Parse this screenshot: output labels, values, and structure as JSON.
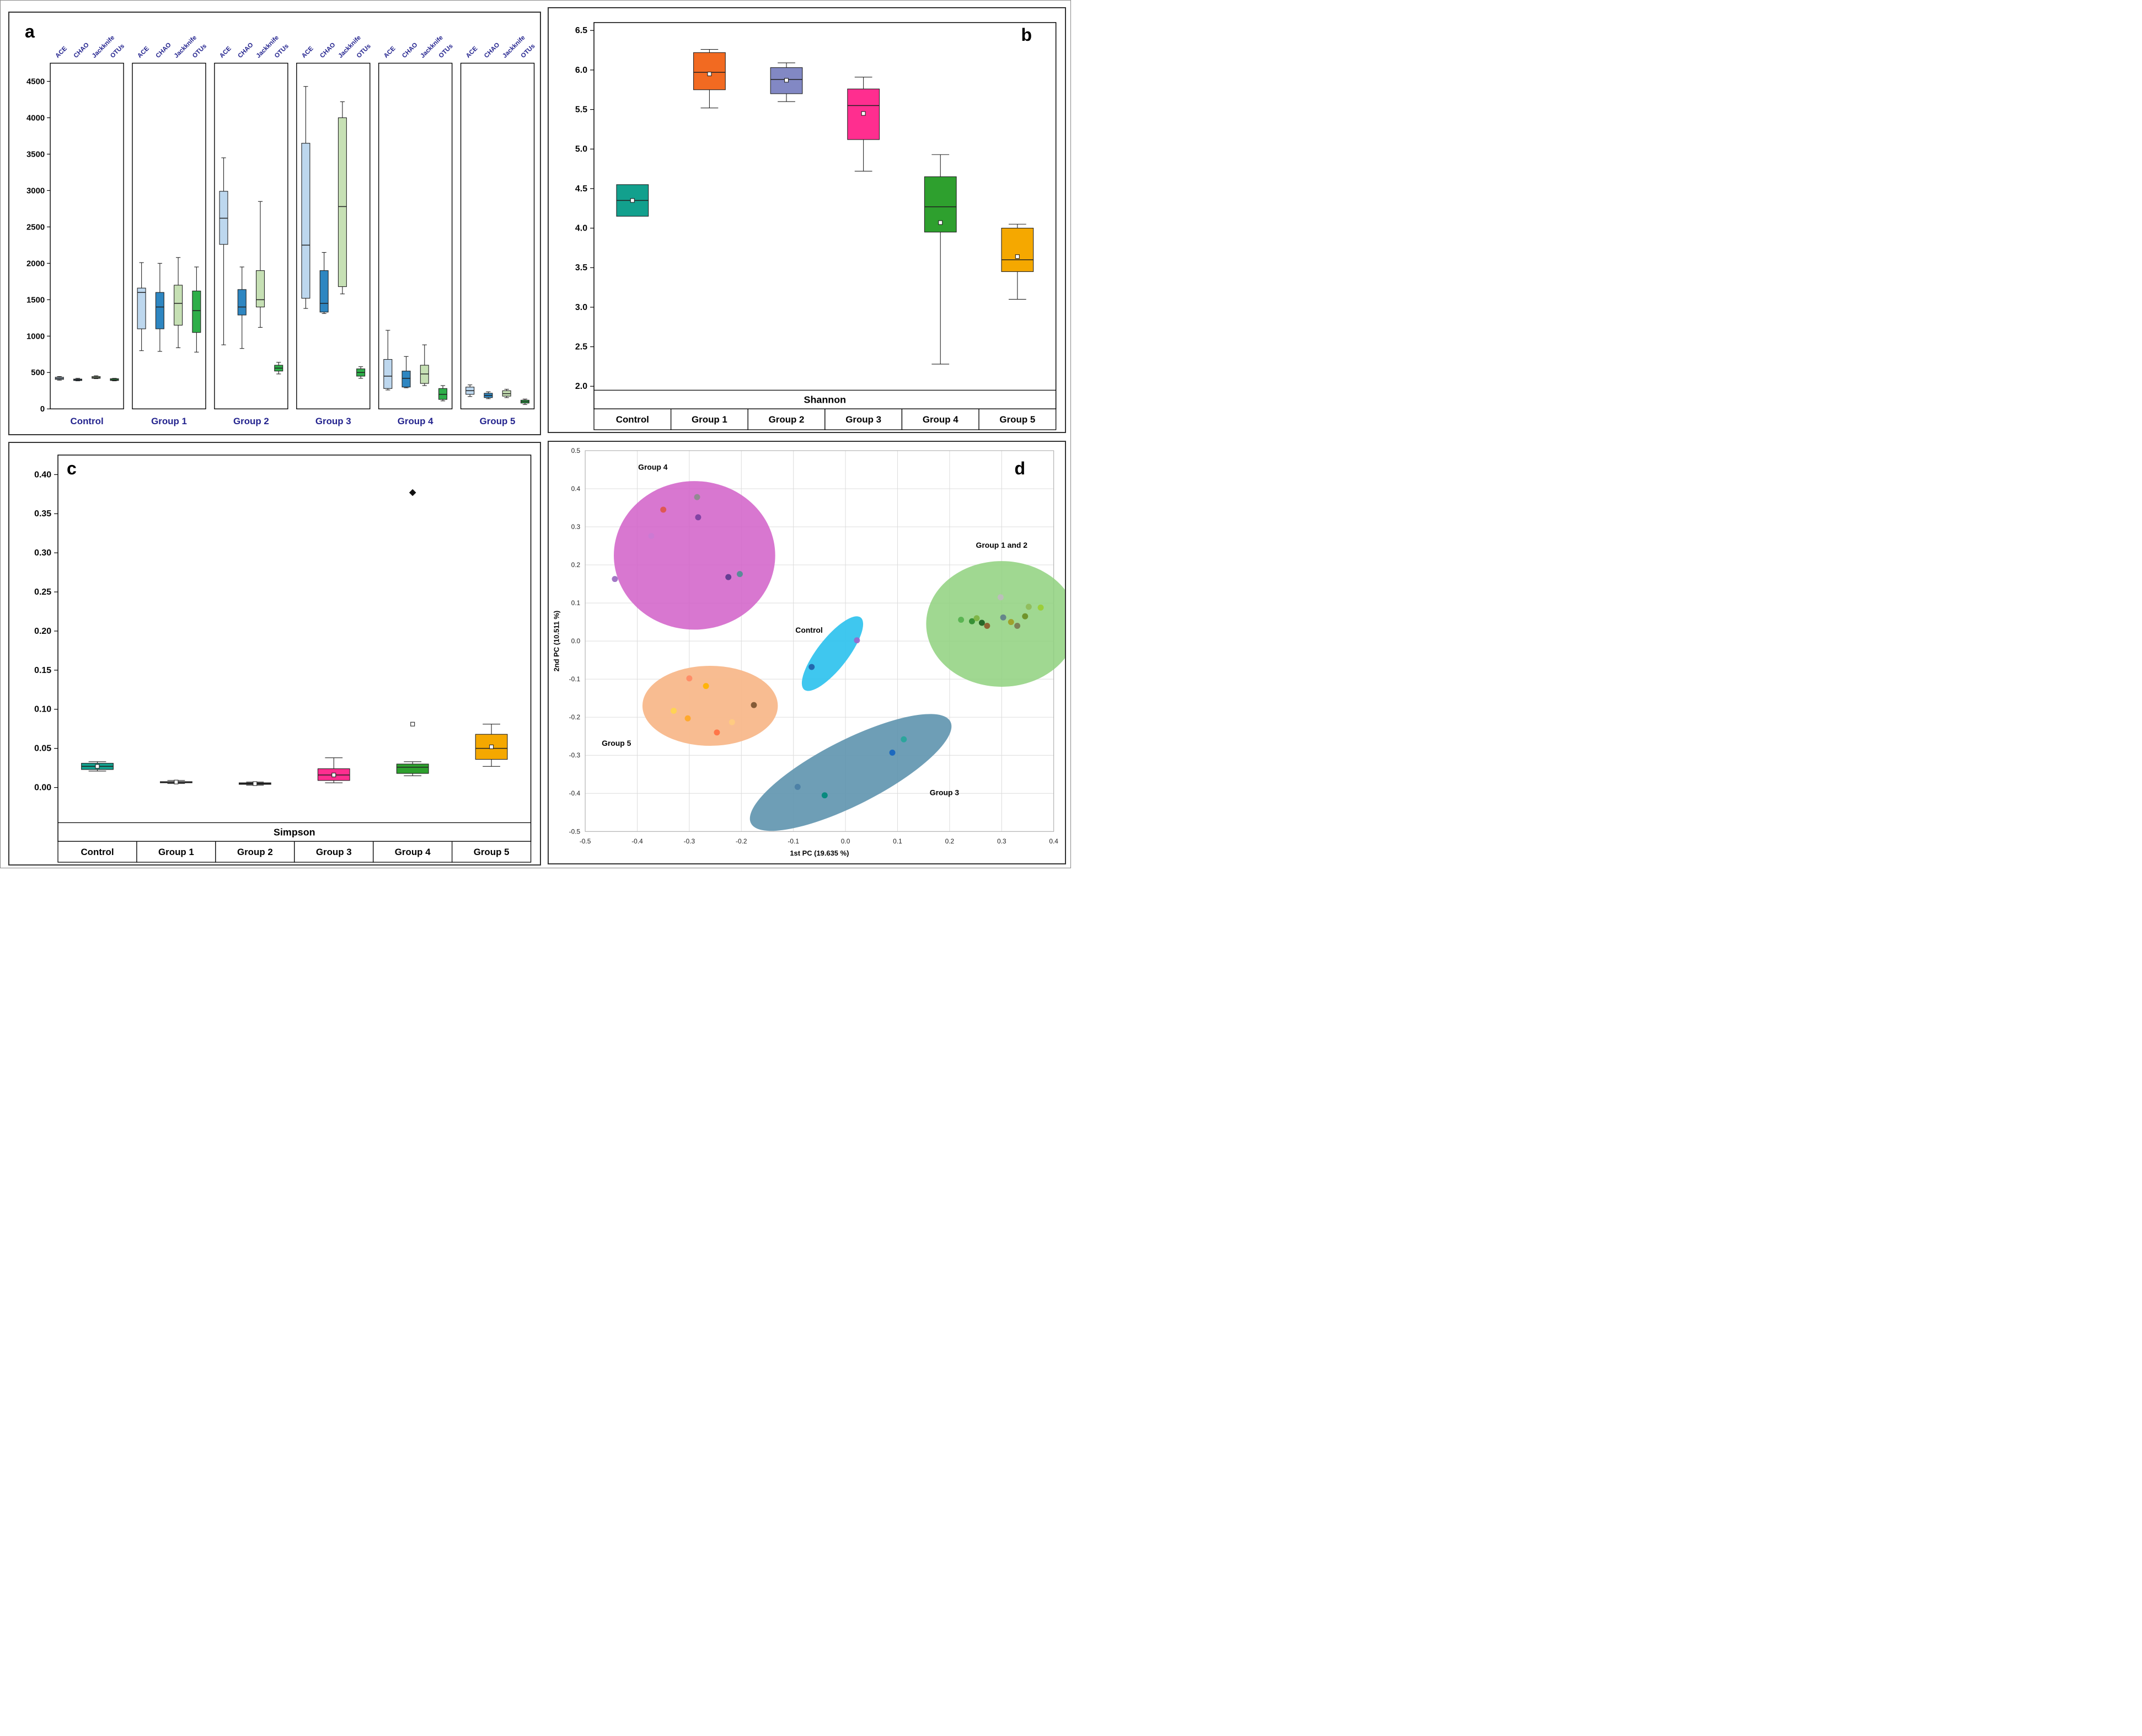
{
  "panel_letters": {
    "a": "a",
    "b": "b",
    "c": "c",
    "d": "d"
  },
  "chart_data": [
    {
      "type": "box",
      "panel": "a",
      "title": "Richness estimators (ACE, CHAO, Jackknife, OTUs) per group",
      "series": [
        "ACE",
        "CHAO",
        "Jackknife",
        "OTUs"
      ],
      "series_colors": [
        "#BDD7EE",
        "#2E86C1",
        "#C6E0B4",
        "#2EAE49"
      ],
      "groups": [
        "Control",
        "Group 1",
        "Group 2",
        "Group 3",
        "Group 4",
        "Group 5"
      ],
      "label_color": "#23238E",
      "ylim": [
        0,
        4750
      ],
      "yticks": [
        0,
        500,
        1000,
        1500,
        2000,
        2500,
        3000,
        3500,
        4000,
        4500
      ],
      "ytick_labels": [
        "0",
        "500",
        "1000",
        "1500",
        "2000",
        "2500",
        "3000",
        "3500",
        "4000",
        "4500"
      ],
      "data": [
        [
          [
            395,
            405,
            420,
            435,
            445
          ],
          [
            385,
            390,
            400,
            410,
            420
          ],
          [
            415,
            420,
            430,
            445,
            455
          ],
          [
            385,
            390,
            400,
            415,
            420
          ]
        ],
        [
          [
            800,
            1100,
            1600,
            1660,
            2010
          ],
          [
            790,
            1100,
            1400,
            1600,
            2000
          ],
          [
            840,
            1150,
            1450,
            1700,
            2080
          ],
          [
            780,
            1050,
            1350,
            1620,
            1950
          ]
        ],
        [
          [
            880,
            2260,
            2620,
            2990,
            3450
          ],
          [
            830,
            1290,
            1400,
            1640,
            1950
          ],
          [
            1120,
            1400,
            1500,
            1900,
            2850
          ],
          [
            480,
            520,
            560,
            600,
            640
          ]
        ],
        [
          [
            1380,
            1520,
            2250,
            3650,
            4430
          ],
          [
            1310,
            1330,
            1450,
            1900,
            2150
          ],
          [
            1580,
            1680,
            2780,
            4000,
            4220
          ],
          [
            420,
            450,
            500,
            550,
            580
          ]
        ],
        [
          [
            260,
            280,
            450,
            680,
            1080
          ],
          [
            290,
            300,
            420,
            520,
            720
          ],
          [
            320,
            350,
            480,
            600,
            880
          ],
          [
            110,
            130,
            200,
            280,
            320
          ]
        ],
        [
          [
            170,
            200,
            250,
            300,
            330
          ],
          [
            140,
            155,
            185,
            215,
            235
          ],
          [
            155,
            175,
            210,
            250,
            270
          ],
          [
            60,
            80,
            100,
            120,
            135
          ]
        ]
      ]
    },
    {
      "type": "box",
      "panel": "b",
      "bottom_label": "Shannon",
      "groups": [
        "Control",
        "Group 1",
        "Group 2",
        "Group 3",
        "Group 4",
        "Group 5"
      ],
      "colors": [
        "#12A08D",
        "#F26A21",
        "#8288C4",
        "#FF2E8F",
        "#2EA02E",
        "#F5A800"
      ],
      "ylim": [
        1.95,
        6.6
      ],
      "yticks": [
        2.0,
        2.5,
        3.0,
        3.5,
        4.0,
        4.5,
        5.0,
        5.5,
        6.0,
        6.5
      ],
      "ytick_labels": [
        "2.0",
        "2.5",
        "3.0",
        "3.5",
        "4.0",
        "4.5",
        "5.0",
        "5.5",
        "6.0",
        "6.5"
      ],
      "boxes": [
        {
          "w": [
            4.15,
            4.15,
            4.35,
            4.55,
            4.55
          ],
          "mean": 4.35
        },
        {
          "w": [
            5.52,
            5.75,
            5.97,
            6.22,
            6.26
          ],
          "mean": 5.95
        },
        {
          "w": [
            5.6,
            5.7,
            5.88,
            6.03,
            6.09
          ],
          "mean": 5.87
        },
        {
          "w": [
            4.72,
            5.12,
            5.55,
            5.76,
            5.91
          ],
          "mean": 5.45
        },
        {
          "w": [
            2.28,
            3.95,
            4.27,
            4.65,
            4.93
          ],
          "mean": 4.07
        },
        {
          "w": [
            3.1,
            3.45,
            3.6,
            4.0,
            4.05
          ],
          "mean": 3.64
        }
      ]
    },
    {
      "type": "box",
      "panel": "c",
      "bottom_label": "Simpson",
      "groups": [
        "Control",
        "Group 1",
        "Group 2",
        "Group 3",
        "Group 4",
        "Group 5"
      ],
      "colors": [
        "#12A08D",
        "#111111",
        "#111111",
        "#FF2E8F",
        "#2EA02E",
        "#F5A800"
      ],
      "ylim": [
        -0.045,
        0.425
      ],
      "yticks": [
        0.0,
        0.05,
        0.1,
        0.15,
        0.2,
        0.25,
        0.3,
        0.35,
        0.4
      ],
      "ytick_labels": [
        "0.00",
        "0.05",
        "0.10",
        "0.15",
        "0.20",
        "0.25",
        "0.30",
        "0.35",
        "0.40"
      ],
      "boxes": [
        {
          "w": [
            0.021,
            0.023,
            0.027,
            0.031,
            0.033
          ],
          "mean": 0.027
        },
        {
          "w": [
            0.005,
            0.006,
            0.007,
            0.0075,
            0.009
          ],
          "mean": 0.007
        },
        {
          "w": [
            0.003,
            0.004,
            0.005,
            0.006,
            0.007
          ],
          "mean": 0.005
        },
        {
          "w": [
            0.006,
            0.009,
            0.016,
            0.024,
            0.038
          ],
          "mean": 0.016
        },
        {
          "w": [
            0.015,
            0.018,
            0.026,
            0.03,
            0.033
          ],
          "mean": 0.081,
          "outliers": [
            0.377
          ]
        },
        {
          "w": [
            0.027,
            0.036,
            0.05,
            0.068,
            0.081
          ],
          "mean": 0.052
        }
      ]
    },
    {
      "type": "scatter",
      "panel": "d",
      "xlabel": "1st PC (19.635 %)",
      "ylabel": "2nd PC (10.511 %)",
      "xlim": [
        -0.5,
        0.4
      ],
      "ylim": [
        -0.5,
        0.5
      ],
      "xticks": [
        -0.5,
        -0.4,
        -0.3,
        -0.2,
        -0.1,
        0.0,
        0.1,
        0.2,
        0.3,
        0.4
      ],
      "xtick_labels": [
        "-0.5",
        "-0.4",
        "-0.3",
        "-0.2",
        "-0.1",
        "0.0",
        "0.1",
        "0.2",
        "0.3",
        "0.4"
      ],
      "yticks": [
        -0.5,
        -0.4,
        -0.3,
        -0.2,
        -0.1,
        0.0,
        0.1,
        0.2,
        0.3,
        0.4,
        0.5
      ],
      "ytick_labels": [
        "-0.5",
        "-0.4",
        "-0.3",
        "-0.2",
        "-0.1",
        "0.0",
        "0.1",
        "0.2",
        "0.3",
        "0.4",
        "0.5"
      ],
      "ellipses": [
        {
          "name": "Group 4",
          "cx": -0.29,
          "cy": 0.225,
          "rx": 0.155,
          "ry": 0.195,
          "rot": 0,
          "fill": "#D15FC8",
          "opacity": 0.85,
          "lx": -0.37,
          "ly": 0.45
        },
        {
          "name": "Group 5",
          "cx": -0.26,
          "cy": -0.17,
          "rx": 0.13,
          "ry": 0.105,
          "rot": 0,
          "fill": "#F8B88B",
          "opacity": 0.95,
          "lx": -0.44,
          "ly": -0.275
        },
        {
          "name": "Control",
          "cx": -0.025,
          "cy": -0.033,
          "rx": 0.088,
          "ry": 0.04,
          "rot": -52,
          "fill": "#35C4EE",
          "opacity": 0.95,
          "lx": -0.07,
          "ly": 0.022
        },
        {
          "name": "Group 1 and 2",
          "cx": 0.3,
          "cy": 0.045,
          "rx": 0.145,
          "ry": 0.165,
          "rot": 0,
          "fill": "#8FD17E",
          "opacity": 0.85,
          "lx": 0.3,
          "ly": 0.245
        },
        {
          "name": "Group 3",
          "cx": 0.01,
          "cy": -0.345,
          "rx": 0.215,
          "ry": 0.085,
          "rot": -27,
          "fill": "#5E93AE",
          "opacity": 0.9,
          "lx": 0.19,
          "ly": -0.405
        }
      ],
      "points": [
        {
          "x": -0.35,
          "y": 0.345,
          "c": "#E05548"
        },
        {
          "x": -0.285,
          "y": 0.378,
          "c": "#8C8C8C"
        },
        {
          "x": -0.283,
          "y": 0.325,
          "c": "#7B3FA0"
        },
        {
          "x": -0.373,
          "y": 0.276,
          "c": "#CB7BD2"
        },
        {
          "x": -0.225,
          "y": 0.168,
          "c": "#5C3A8E"
        },
        {
          "x": -0.203,
          "y": 0.176,
          "c": "#4E8E92"
        },
        {
          "x": -0.443,
          "y": 0.163,
          "c": "#9A6BC0"
        },
        {
          "x": 0.022,
          "y": 0.002,
          "c": "#9966CC"
        },
        {
          "x": -0.065,
          "y": -0.068,
          "c": "#2060A8"
        },
        {
          "x": 0.222,
          "y": 0.056,
          "c": "#55B24E"
        },
        {
          "x": 0.243,
          "y": 0.052,
          "c": "#2E8B2E"
        },
        {
          "x": 0.252,
          "y": 0.06,
          "c": "#7CB342"
        },
        {
          "x": 0.262,
          "y": 0.048,
          "c": "#1B5E20"
        },
        {
          "x": 0.272,
          "y": 0.04,
          "c": "#8B5A2B"
        },
        {
          "x": 0.298,
          "y": 0.115,
          "c": "#BDBDBD"
        },
        {
          "x": 0.303,
          "y": 0.062,
          "c": "#5F7F8A"
        },
        {
          "x": 0.318,
          "y": 0.05,
          "c": "#9E9D24"
        },
        {
          "x": 0.33,
          "y": 0.04,
          "c": "#7A7A52"
        },
        {
          "x": 0.345,
          "y": 0.065,
          "c": "#6B8E23"
        },
        {
          "x": 0.352,
          "y": 0.09,
          "c": "#8FBC5A"
        },
        {
          "x": 0.375,
          "y": 0.088,
          "c": "#9ACD32"
        },
        {
          "x": -0.3,
          "y": -0.098,
          "c": "#FF8A65"
        },
        {
          "x": -0.268,
          "y": -0.118,
          "c": "#FFB300"
        },
        {
          "x": -0.33,
          "y": -0.183,
          "c": "#FFD54F"
        },
        {
          "x": -0.303,
          "y": -0.203,
          "c": "#FFA726"
        },
        {
          "x": -0.176,
          "y": -0.168,
          "c": "#7A5230"
        },
        {
          "x": -0.247,
          "y": -0.24,
          "c": "#FF7043"
        },
        {
          "x": -0.218,
          "y": -0.213,
          "c": "#FFCC80"
        },
        {
          "x": 0.112,
          "y": -0.258,
          "c": "#26A69A"
        },
        {
          "x": 0.09,
          "y": -0.293,
          "c": "#1565C0"
        },
        {
          "x": -0.092,
          "y": -0.383,
          "c": "#4A7FA5"
        },
        {
          "x": -0.04,
          "y": -0.405,
          "c": "#00897B"
        }
      ]
    }
  ]
}
